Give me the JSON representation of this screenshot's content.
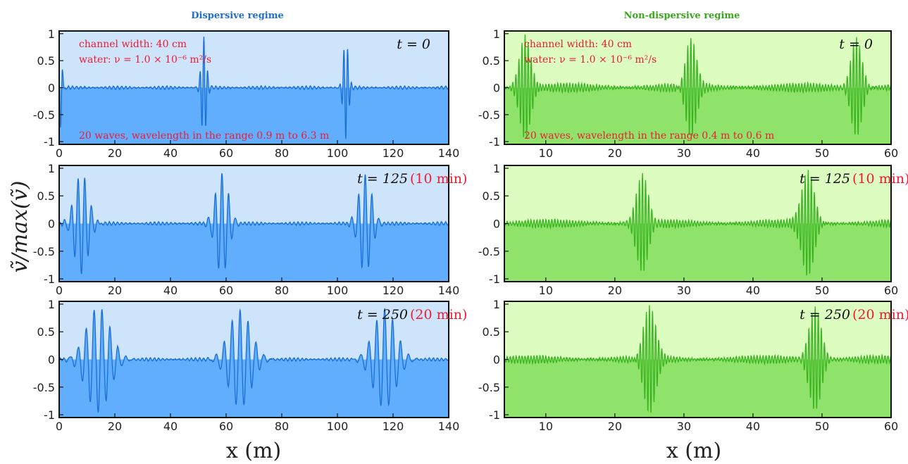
{
  "figure": {
    "ylabel": "ṽ/max(ṽ)",
    "xlabel_left": "x (m)",
    "xlabel_right": "x (m)"
  },
  "chart_data": [
    {
      "type": "line",
      "panel": "dispersive-t0",
      "column_title": "Dispersive regime",
      "time_label": "t = 0",
      "time_suffix": "",
      "annotations": [
        "channel width: 40 cm",
        "water: ν = 1.0 × 10⁻⁶ m²/s",
        "20 waves, wavelength in the range 0.9 m to 6.3 m"
      ],
      "xlim": [
        0,
        140
      ],
      "ylim": [
        -1.05,
        1.05
      ],
      "xticks": [
        "0",
        "20",
        "40",
        "60",
        "80",
        "100",
        "120",
        "140"
      ],
      "yticks": [
        "1",
        "0.5",
        "0",
        "-0.5",
        "-1"
      ],
      "packets": [
        {
          "x": 0.5,
          "amp": -0.75,
          "width": 0.6,
          "k": 4.0
        },
        {
          "x": 52,
          "amp": 0.92,
          "width": 0.9,
          "k": 4.5
        },
        {
          "x": 103,
          "amp": -0.93,
          "width": 0.9,
          "k": 4.5
        }
      ],
      "noise": 0.03,
      "colors": {
        "line": "#1a6fd6",
        "fill": "#62aefe",
        "bg": "#cde4fb"
      }
    },
    {
      "type": "line",
      "panel": "dispersive-t125",
      "time_label": "t = 125",
      "time_suffix": "(10 min)",
      "xlim": [
        0,
        140
      ],
      "ylim": [
        -1.05,
        1.05
      ],
      "xticks": [
        "0",
        "20",
        "40",
        "60",
        "80",
        "100",
        "120",
        "140"
      ],
      "yticks": [
        "1",
        "0.5",
        "0",
        "-0.5",
        "-1"
      ],
      "packets": [
        {
          "x": 8,
          "amp": -0.92,
          "width": 2.5,
          "k": 2.6
        },
        {
          "x": 58.5,
          "amp": 0.92,
          "width": 2.3,
          "k": 2.6
        },
        {
          "x": 110,
          "amp": 0.9,
          "width": 2.3,
          "k": 2.6
        }
      ],
      "noise": 0.03,
      "colors": {
        "line": "#1a6fd6",
        "fill": "#62aefe",
        "bg": "#cde4fb"
      }
    },
    {
      "type": "line",
      "panel": "dispersive-t250",
      "time_label": "t = 250",
      "time_suffix": "(20 min)",
      "xlim": [
        0,
        140
      ],
      "ylim": [
        -1.05,
        1.05
      ],
      "xticks": [
        "0",
        "20",
        "40",
        "60",
        "80",
        "100",
        "120",
        "140"
      ],
      "yticks": [
        "1",
        "0.5",
        "0",
        "-0.5",
        "-1"
      ],
      "packets": [
        {
          "x": 14,
          "amp": -0.95,
          "width": 4.2,
          "k": 2.2
        },
        {
          "x": 65,
          "amp": 0.88,
          "width": 4.0,
          "k": 2.2
        },
        {
          "x": 117,
          "amp": 0.9,
          "width": 4.0,
          "k": 2.2
        }
      ],
      "noise": 0.03,
      "colors": {
        "line": "#1a6fd6",
        "fill": "#62aefe",
        "bg": "#cde4fb"
      }
    },
    {
      "type": "line",
      "panel": "nondispersive-t0",
      "column_title": "Non-dispersive regime",
      "time_label": "t = 0",
      "time_suffix": "",
      "annotations": [
        "channel width: 40 cm",
        "water: ν = 1.0 × 10⁻⁶ m²/s",
        "20 waves, wavelength in the range 0.4 m to 0.6 m"
      ],
      "xlim": [
        4,
        60
      ],
      "ylim": [
        -1.05,
        1.05
      ],
      "xticks": [
        "10",
        "20",
        "30",
        "40",
        "50",
        "60"
      ],
      "yticks": [
        "1",
        "0.5",
        "0",
        "-0.5",
        "-1"
      ],
      "packets": [
        {
          "x": 7,
          "amp": 0.95,
          "width": 0.8,
          "k": 14
        },
        {
          "x": 31,
          "amp": 0.95,
          "width": 0.8,
          "k": 14
        },
        {
          "x": 55,
          "amp": 0.95,
          "width": 0.8,
          "k": 14
        }
      ],
      "noise": 0.08,
      "colors": {
        "line": "#3ab521",
        "fill": "#8fe36a",
        "bg": "#dcfcc0"
      }
    },
    {
      "type": "line",
      "panel": "nondispersive-t125",
      "time_label": "t = 125",
      "time_suffix": "(10 min)",
      "xlim": [
        4,
        60
      ],
      "ylim": [
        -1.05,
        1.05
      ],
      "xticks": [
        "10",
        "20",
        "30",
        "40",
        "50",
        "60"
      ],
      "yticks": [
        "1",
        "0.5",
        "0",
        "-0.5",
        "-1"
      ],
      "packets": [
        {
          "x": 24,
          "amp": 0.95,
          "width": 0.9,
          "k": 14
        },
        {
          "x": 48,
          "amp": 0.95,
          "width": 0.9,
          "k": 14
        }
      ],
      "noise": 0.07,
      "colors": {
        "line": "#3ab521",
        "fill": "#8fe36a",
        "bg": "#dcfcc0"
      }
    },
    {
      "type": "line",
      "panel": "nondispersive-t250",
      "time_label": "t = 250",
      "time_suffix": "(20 min)",
      "xlim": [
        4,
        60
      ],
      "ylim": [
        -1.05,
        1.05
      ],
      "xticks": [
        "10",
        "20",
        "30",
        "40",
        "50",
        "60"
      ],
      "yticks": [
        "1",
        "0.5",
        "0",
        "-0.5",
        "-1"
      ],
      "packets": [
        {
          "x": 25,
          "amp": 0.97,
          "width": 0.9,
          "k": 14
        },
        {
          "x": 49,
          "amp": 0.97,
          "width": 0.9,
          "k": 14
        }
      ],
      "noise": 0.07,
      "colors": {
        "line": "#3ab521",
        "fill": "#8fe36a",
        "bg": "#dcfcc0"
      }
    }
  ]
}
